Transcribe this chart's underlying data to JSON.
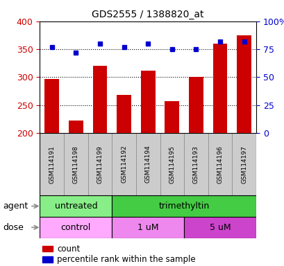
{
  "title": "GDS2555 / 1388820_at",
  "samples": [
    "GSM114191",
    "GSM114198",
    "GSM114199",
    "GSM114192",
    "GSM114194",
    "GSM114195",
    "GSM114193",
    "GSM114196",
    "GSM114197"
  ],
  "counts": [
    297,
    222,
    320,
    268,
    311,
    257,
    301,
    360,
    375
  ],
  "percentile_ranks_pct": [
    77,
    72,
    80,
    77,
    80,
    75,
    75,
    82,
    82
  ],
  "y_min": 200,
  "y_max": 400,
  "y_ticks": [
    200,
    250,
    300,
    350,
    400
  ],
  "y_right_ticks": [
    0,
    25,
    50,
    75,
    100
  ],
  "bar_color": "#cc0000",
  "dot_color": "#0000cc",
  "bar_width": 0.6,
  "agent_groups": [
    {
      "label": "untreated",
      "start": 0,
      "end": 3,
      "color": "#88ee88"
    },
    {
      "label": "trimethyltin",
      "start": 3,
      "end": 9,
      "color": "#44cc44"
    }
  ],
  "dose_groups": [
    {
      "label": "control",
      "start": 0,
      "end": 3,
      "color": "#ffaaff"
    },
    {
      "label": "1 uM",
      "start": 3,
      "end": 6,
      "color": "#ee88ee"
    },
    {
      "label": "5 uM",
      "start": 6,
      "end": 9,
      "color": "#cc44cc"
    }
  ],
  "legend_count_label": "count",
  "legend_percentile_label": "percentile rank within the sample",
  "agent_label": "agent",
  "dose_label": "dose",
  "background_color": "#ffffff",
  "plot_bg_color": "#ffffff",
  "grid_color": "#000000",
  "tick_label_color_left": "#cc0000",
  "tick_label_color_right": "#0000cc",
  "sample_bg_color": "#cccccc"
}
